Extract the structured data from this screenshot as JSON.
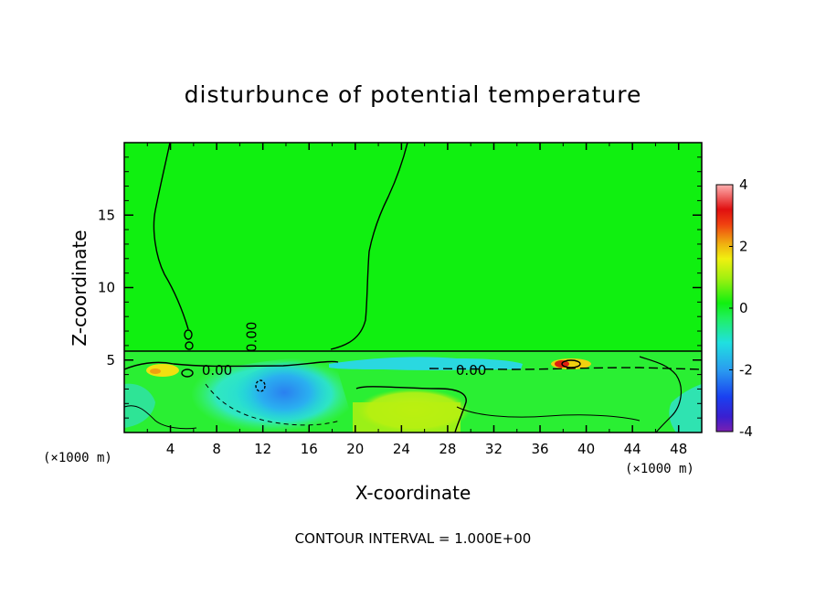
{
  "chart_data": {
    "type": "heatmap",
    "title": "disturbunce of potential temperature",
    "xlabel": "X-coordinate",
    "ylabel": "Z-coordinate",
    "x_unit": "(×1000 m)",
    "z_unit": "(×1000 m)",
    "xlim": [
      0,
      50
    ],
    "ylim": [
      0,
      20
    ],
    "x_ticks": [
      4,
      8,
      12,
      16,
      20,
      24,
      28,
      32,
      36,
      40,
      44,
      48
    ],
    "y_ticks": [
      5,
      10,
      15
    ],
    "colorbar": {
      "range": [
        -4,
        4
      ],
      "ticks": [
        4,
        2,
        0,
        -2,
        -4
      ]
    },
    "contour_labels": [
      "0.00",
      "0.00",
      "0.00"
    ],
    "contour_interval_text": "CONTOUR INTERVAL = 1.000E+00",
    "background_value": 0,
    "regions": [
      {
        "name": "upper layer",
        "x": [
          0,
          50
        ],
        "z": [
          5.5,
          20
        ],
        "value": 0.0
      },
      {
        "name": "cold pool left",
        "x": [
          8,
          20
        ],
        "z": [
          0.3,
          4.8
        ],
        "value": -1.2
      },
      {
        "name": "cold core",
        "x": [
          10,
          18
        ],
        "z": [
          2.5,
          4.6
        ],
        "value": -1.8
      },
      {
        "name": "warm region",
        "x": [
          20,
          30
        ],
        "z": [
          0,
          2.6
        ],
        "value": 0.7
      },
      {
        "name": "warm spot left",
        "x": [
          2,
          6
        ],
        "z": [
          3.8,
          4.8
        ],
        "value": 1.6
      },
      {
        "name": "warm spot right",
        "x": [
          37,
          41
        ],
        "z": [
          4.4,
          5.1
        ],
        "value": 3.0
      },
      {
        "name": "cold band top",
        "x": [
          18,
          35
        ],
        "z": [
          4.5,
          5.4
        ],
        "value": -1.0
      },
      {
        "name": "cold patch right",
        "x": [
          44,
          50
        ],
        "z": [
          1.5,
          3.5
        ],
        "value": -0.8
      }
    ]
  }
}
